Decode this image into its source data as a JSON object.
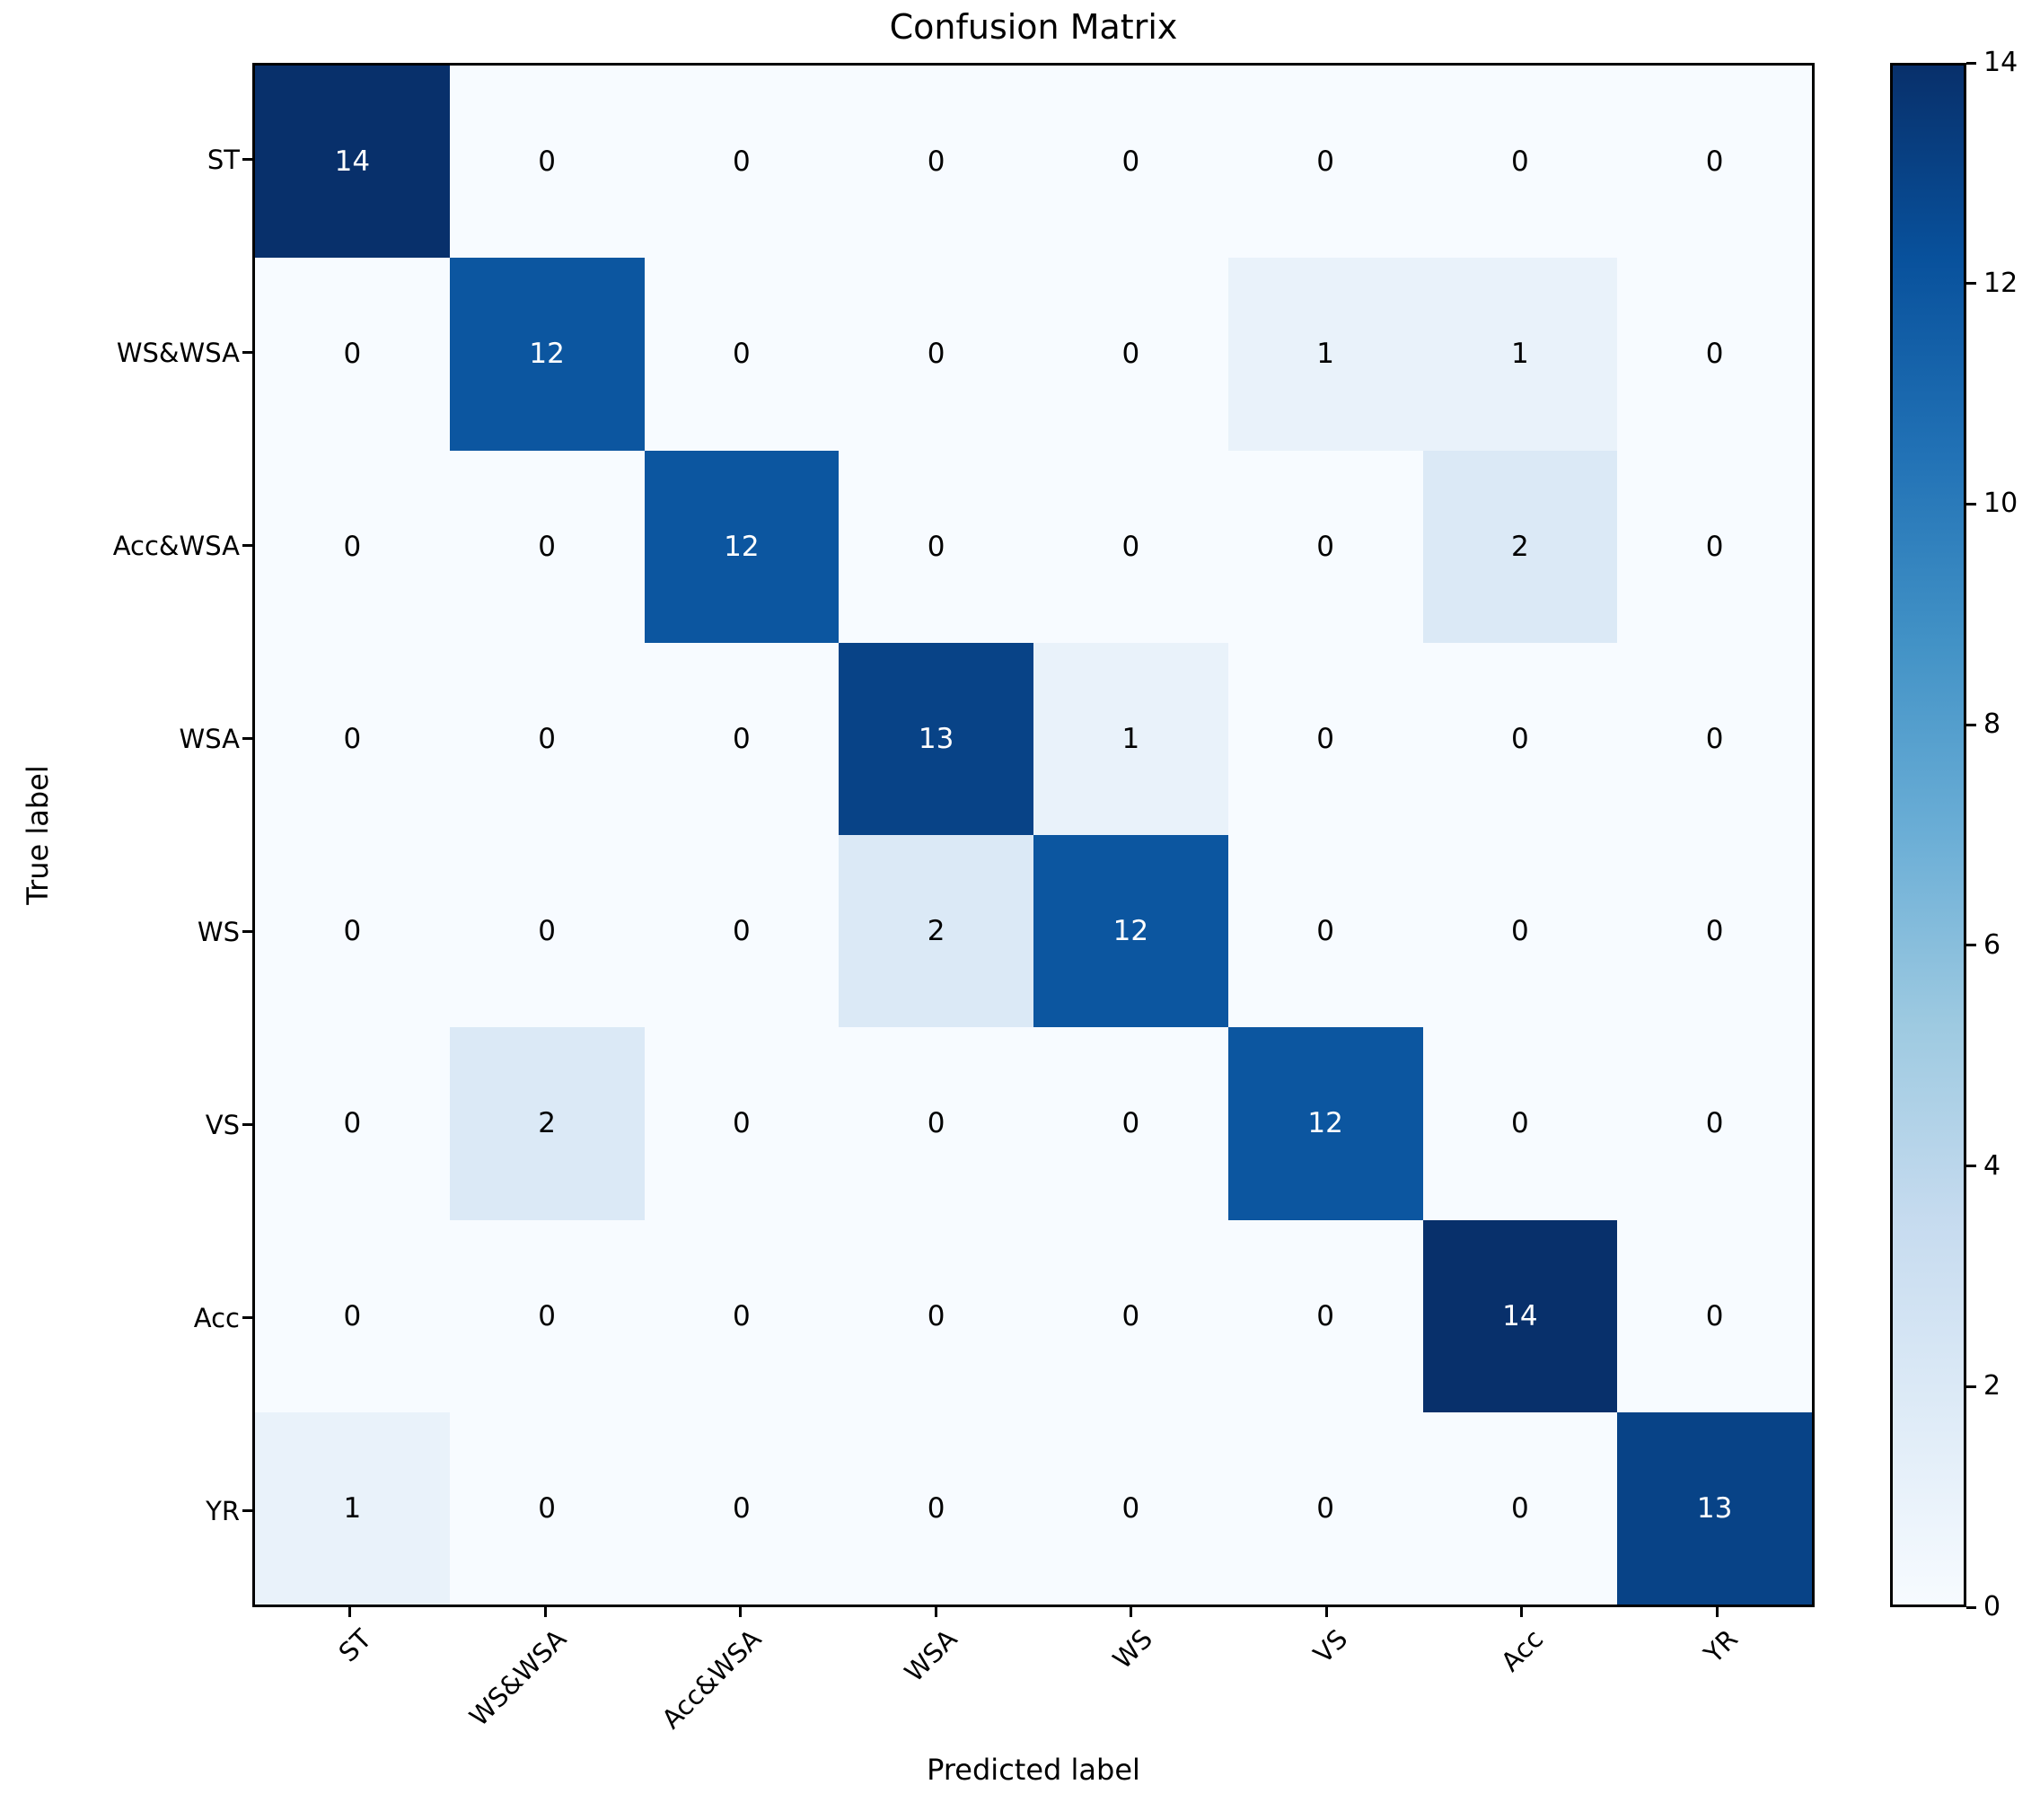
{
  "figure": {
    "background_color": "#ffffff",
    "spine_color": "#000000",
    "text_color": "#000000"
  },
  "chart_data": {
    "type": "heatmap",
    "title": "Confusion Matrix",
    "xlabel": "Predicted label",
    "ylabel": "True label",
    "categories": [
      "ST",
      "WS&WSA",
      "Acc&WSA",
      "WSA",
      "WS",
      "VS",
      "Acc",
      "YR"
    ],
    "matrix": [
      [
        14,
        0,
        0,
        0,
        0,
        0,
        0,
        0
      ],
      [
        0,
        12,
        0,
        0,
        0,
        1,
        1,
        0
      ],
      [
        0,
        0,
        12,
        0,
        0,
        0,
        2,
        0
      ],
      [
        0,
        0,
        0,
        13,
        1,
        0,
        0,
        0
      ],
      [
        0,
        0,
        0,
        2,
        12,
        0,
        0,
        0
      ],
      [
        0,
        2,
        0,
        0,
        0,
        12,
        0,
        0
      ],
      [
        0,
        0,
        0,
        0,
        0,
        0,
        14,
        0
      ],
      [
        1,
        0,
        0,
        0,
        0,
        0,
        0,
        13
      ]
    ],
    "vmin": 0,
    "vmax": 14,
    "colorbar_ticks": [
      0,
      2,
      4,
      6,
      8,
      10,
      12,
      14
    ],
    "colormap": "Blues",
    "colormap_stops": [
      "#f7fbff",
      "#deebf7",
      "#c6dbef",
      "#9ecae1",
      "#6baed6",
      "#4292c6",
      "#2171b5",
      "#08519c",
      "#08306b"
    ],
    "annotation_color_light_cells": "#000000",
    "annotation_color_dark_cells": "#ffffff",
    "x_tick_rotation_deg": 45,
    "legend_position": "right-colorbar",
    "grid": false
  }
}
